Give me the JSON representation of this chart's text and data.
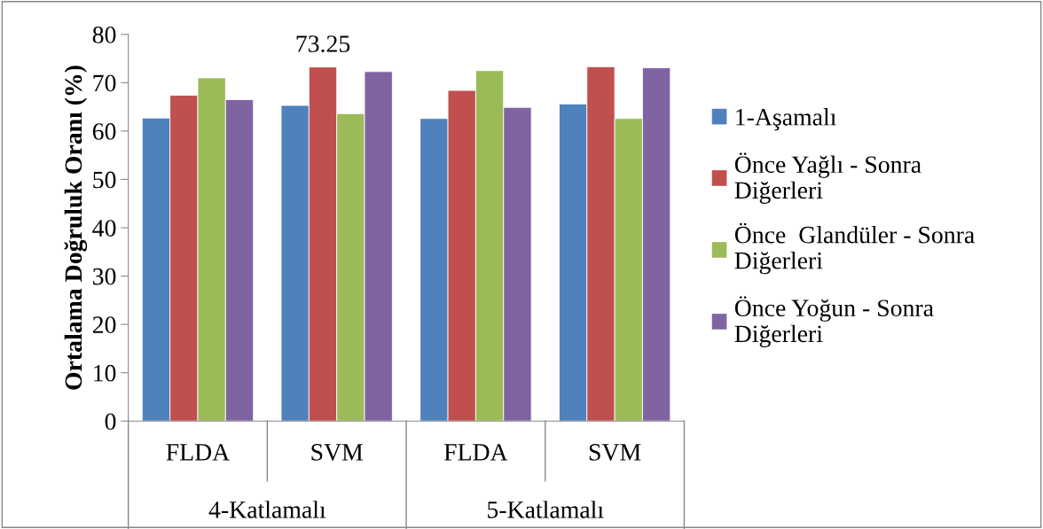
{
  "chart_data": {
    "type": "bar",
    "ylabel": "Ortalama Doğruluk Oranı (%)",
    "categories": [
      "FLDA",
      "SVM",
      "FLDA",
      "SVM"
    ],
    "annotations": [
      "4-Katlamalı",
      "5-Katlamalı"
    ],
    "series": [
      {
        "name": "1-Aşamalı",
        "color": "#4f81bd",
        "values": [
          62.7,
          65.3,
          62.6,
          65.6
        ]
      },
      {
        "name": "Önce Yağlı - Sonra Diğerleri",
        "color": "#c0504d",
        "values": [
          67.4,
          73.25,
          68.4,
          73.3
        ],
        "value_labels": [
          null,
          "73.25",
          null,
          null
        ]
      },
      {
        "name": "Önce  Glandüler - Sonra Diğerleri",
        "color": "#9bbb59",
        "values": [
          71.0,
          63.6,
          72.5,
          62.6
        ]
      },
      {
        "name": "Önce Yoğun - Sonra Diğerleri",
        "color": "#8064a2",
        "values": [
          66.5,
          72.3,
          64.9,
          73.1
        ]
      }
    ],
    "ylim": [
      0,
      80
    ],
    "yticks": [
      0,
      10,
      20,
      30,
      40,
      50,
      60,
      70,
      80
    ],
    "grid": false,
    "legend": "right"
  }
}
